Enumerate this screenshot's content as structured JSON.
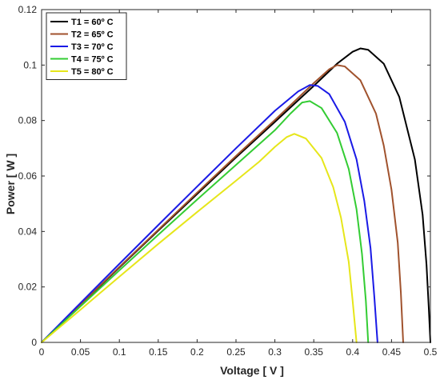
{
  "chart_data": {
    "type": "line",
    "xlabel": "Voltage [ V ]",
    "ylabel": "Power [ W ]",
    "xlim": [
      0,
      0.5
    ],
    "ylim": [
      0,
      0.12
    ],
    "xticks": [
      0,
      0.05,
      0.1,
      0.15,
      0.2,
      0.25,
      0.3,
      0.35,
      0.4,
      0.45,
      0.5
    ],
    "xtick_labels": [
      "0",
      "0.05",
      "0.1",
      "0.15",
      "0.2",
      "0.25",
      "0.3",
      "0.35",
      "0.4",
      "0.45",
      "0.5"
    ],
    "yticks": [
      0,
      0.02,
      0.04,
      0.06,
      0.08,
      0.1,
      0.12
    ],
    "ytick_labels": [
      "0",
      "0.02",
      "0.04",
      "0.06",
      "0.08",
      "0.1",
      "0.12"
    ],
    "grid": false,
    "legend_position": "top-left",
    "series": [
      {
        "name": "T1 = 60º C",
        "color": "#000000",
        "x": [
          0,
          0.05,
          0.1,
          0.15,
          0.2,
          0.25,
          0.3,
          0.35,
          0.38,
          0.4,
          0.41,
          0.42,
          0.44,
          0.46,
          0.48,
          0.49,
          0.495,
          0.498,
          0.5
        ],
        "y": [
          0,
          0.0135,
          0.027,
          0.0403,
          0.0535,
          0.0667,
          0.0795,
          0.0925,
          0.1005,
          0.1048,
          0.106,
          0.1055,
          0.1005,
          0.0885,
          0.066,
          0.046,
          0.028,
          0.012,
          0
        ]
      },
      {
        "name": "T2 = 65º C",
        "color": "#A0522D",
        "x": [
          0,
          0.05,
          0.1,
          0.15,
          0.2,
          0.25,
          0.3,
          0.35,
          0.37,
          0.38,
          0.39,
          0.41,
          0.43,
          0.44,
          0.45,
          0.458,
          0.462,
          0.465
        ],
        "y": [
          0,
          0.0137,
          0.0272,
          0.0406,
          0.054,
          0.0672,
          0.0802,
          0.0935,
          0.0985,
          0.1,
          0.0995,
          0.0945,
          0.0825,
          0.071,
          0.055,
          0.036,
          0.018,
          0
        ]
      },
      {
        "name": "T3 = 70º C",
        "color": "#1A1AE6",
        "x": [
          0,
          0.05,
          0.1,
          0.15,
          0.2,
          0.25,
          0.3,
          0.33,
          0.345,
          0.355,
          0.37,
          0.39,
          0.405,
          0.415,
          0.423,
          0.428,
          0.432
        ],
        "y": [
          0,
          0.0142,
          0.0283,
          0.0423,
          0.0562,
          0.07,
          0.0835,
          0.0905,
          0.0928,
          0.0925,
          0.0895,
          0.0795,
          0.066,
          0.051,
          0.034,
          0.016,
          0
        ]
      },
      {
        "name": "T4 = 75º C",
        "color": "#33CC33",
        "x": [
          0,
          0.05,
          0.1,
          0.15,
          0.2,
          0.25,
          0.3,
          0.32,
          0.335,
          0.345,
          0.36,
          0.38,
          0.395,
          0.405,
          0.412,
          0.417,
          0.42
        ],
        "y": [
          0,
          0.013,
          0.026,
          0.0388,
          0.0515,
          0.064,
          0.0765,
          0.0825,
          0.0865,
          0.087,
          0.0845,
          0.0755,
          0.0625,
          0.048,
          0.032,
          0.015,
          0
        ]
      },
      {
        "name": "T5 = 80º C",
        "color": "#E6E61A",
        "x": [
          0,
          0.05,
          0.1,
          0.15,
          0.2,
          0.25,
          0.28,
          0.3,
          0.315,
          0.325,
          0.34,
          0.36,
          0.375,
          0.385,
          0.395,
          0.4,
          0.405
        ],
        "y": [
          0,
          0.0118,
          0.0237,
          0.0355,
          0.047,
          0.0583,
          0.0652,
          0.0705,
          0.074,
          0.0752,
          0.0735,
          0.0665,
          0.056,
          0.045,
          0.029,
          0.015,
          0
        ]
      }
    ]
  }
}
